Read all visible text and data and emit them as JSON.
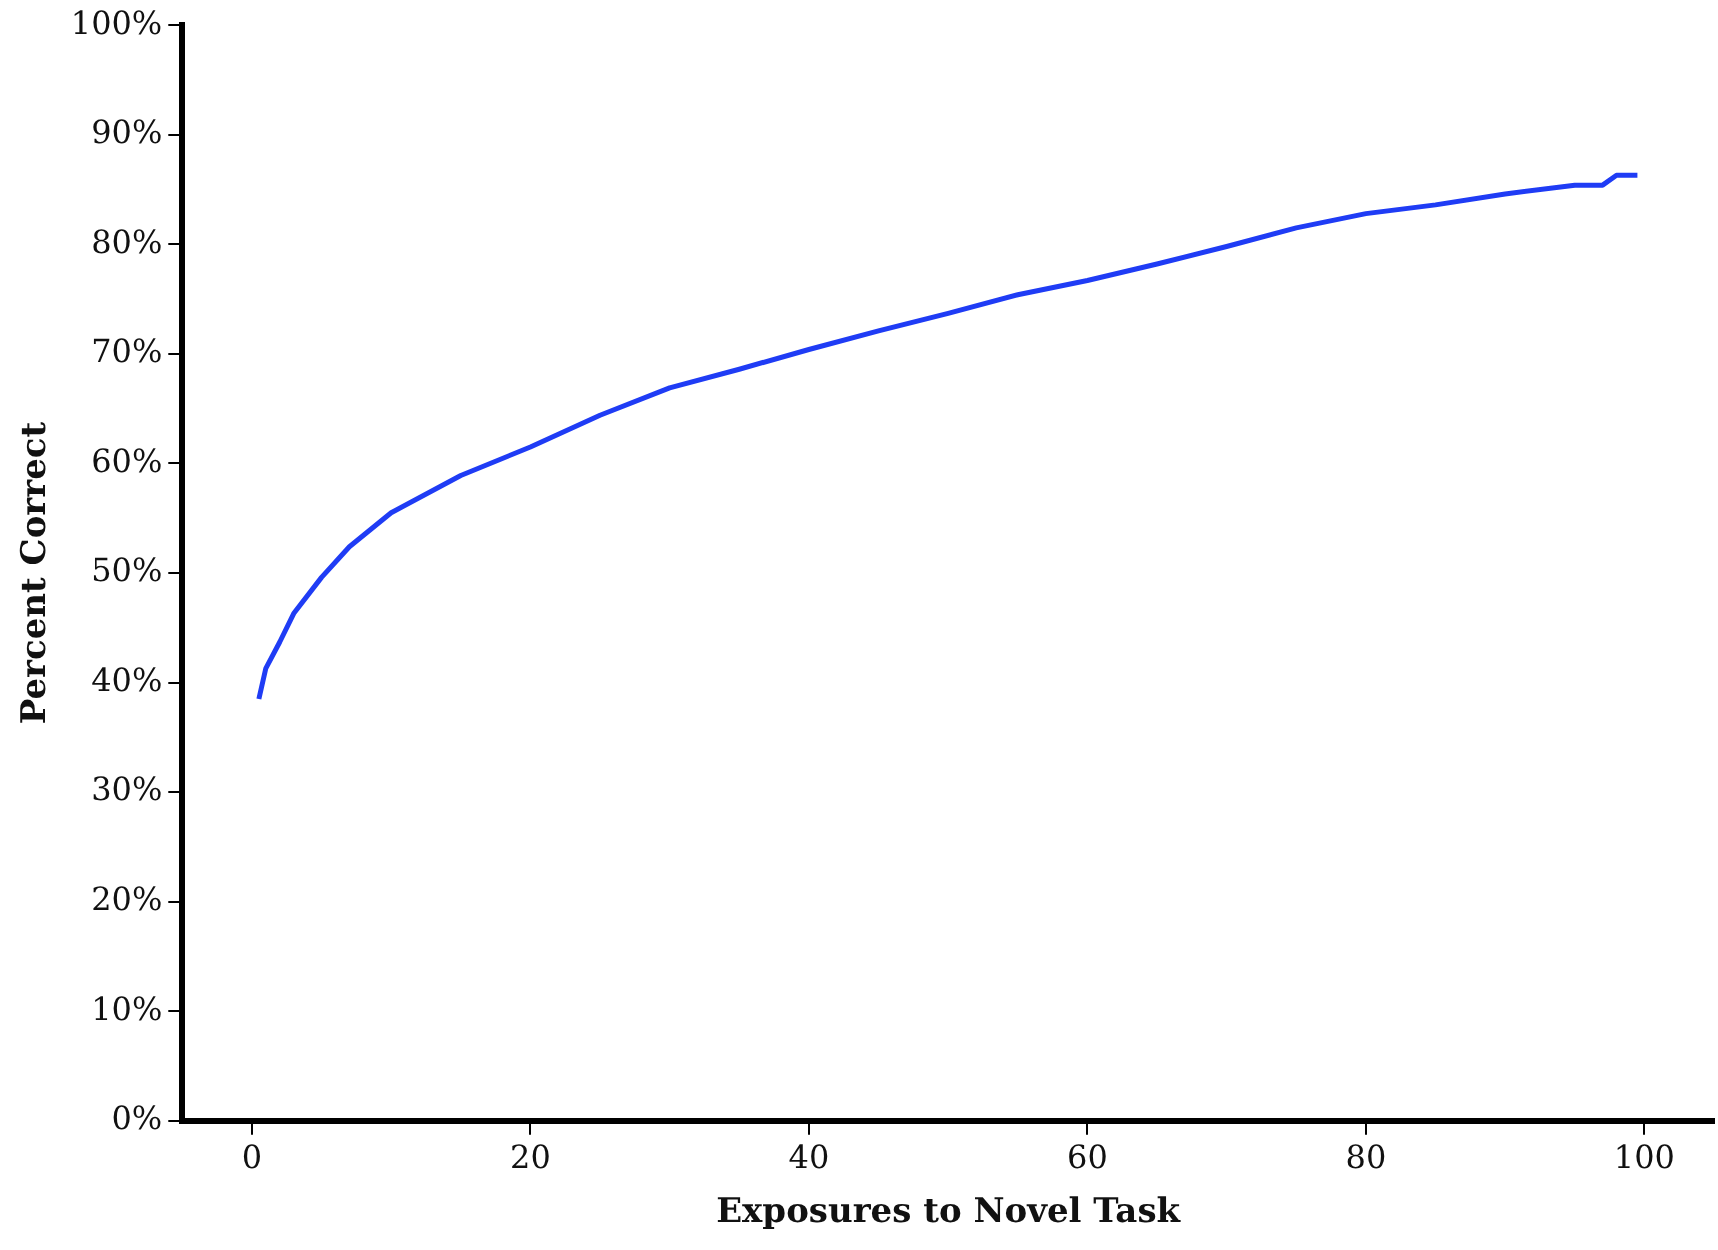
{
  "chart_data": {
    "type": "line",
    "xlabel": "Exposures to Novel Task",
    "ylabel": "Percent Correct",
    "x": [
      0.5,
      1,
      2,
      3,
      5,
      7,
      10,
      15,
      20,
      25,
      30,
      35,
      40,
      45,
      50,
      55,
      60,
      65,
      70,
      75,
      80,
      85,
      90,
      95,
      97,
      98,
      99.5
    ],
    "series": [
      {
        "color": "#1f3cf5",
        "values": [
          38.5,
          41.3,
          43.7,
          46.3,
          49.6,
          52.4,
          55.5,
          58.9,
          61.5,
          64.4,
          66.9,
          68.6,
          70.4,
          72.1,
          73.7,
          75.4,
          76.7,
          78.2,
          79.8,
          81.5,
          82.8,
          83.6,
          84.6,
          85.4,
          85.4,
          86.3,
          86.3
        ]
      }
    ],
    "xlim": [
      -5,
      105
    ],
    "xticks": [
      0,
      20,
      40,
      60,
      80,
      100
    ],
    "ylim": [
      0,
      100
    ],
    "yticks": [
      {
        "value": 0,
        "label": "0%"
      },
      {
        "value": 10,
        "label": "10%"
      },
      {
        "value": 20,
        "label": "20%"
      },
      {
        "value": 30,
        "label": "30%"
      },
      {
        "value": 40,
        "label": "40%"
      },
      {
        "value": 50,
        "label": "50%"
      },
      {
        "value": 60,
        "label": "60%"
      },
      {
        "value": 70,
        "label": "70%"
      },
      {
        "value": 80,
        "label": "80%"
      },
      {
        "value": 90,
        "label": "90%"
      },
      {
        "value": 100,
        "label": "100%"
      }
    ],
    "grid": false,
    "legend": false,
    "marker": "none",
    "line_style": "solid"
  }
}
